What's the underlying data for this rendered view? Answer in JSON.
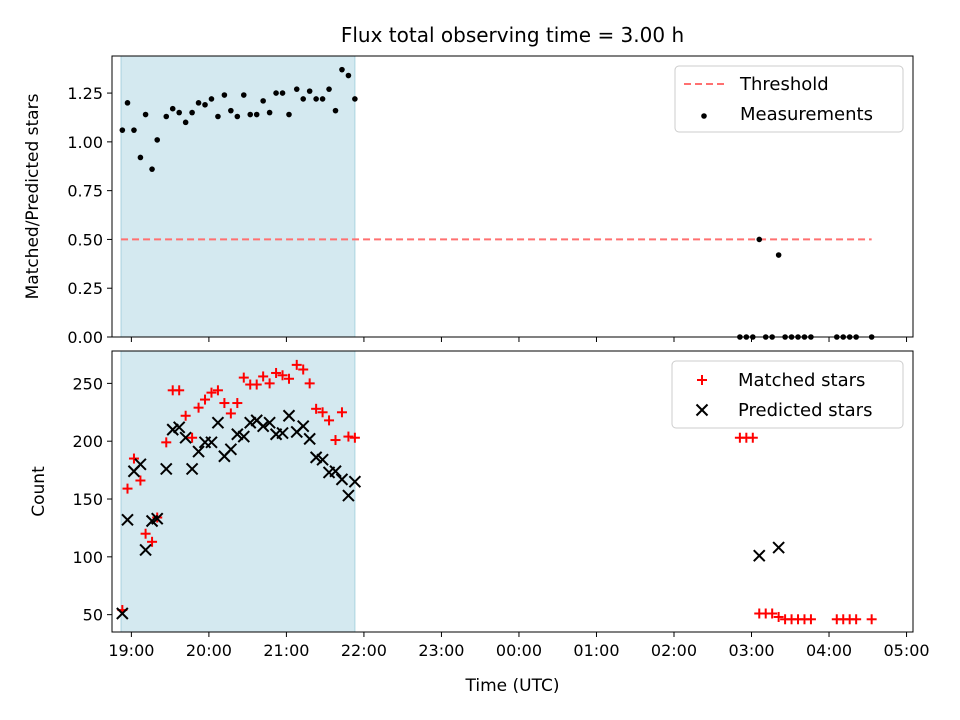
{
  "chart_data": [
    {
      "type": "scatter",
      "title": "Flux total observing time = 3.00 h",
      "xlabel": "",
      "ylabel": "Matched/Predicted stars",
      "xlim": [
        "18:45",
        "05:05"
      ],
      "ylim": [
        0,
        1.44
      ],
      "yticks": [
        "0.00",
        "0.25",
        "0.50",
        "0.75",
        "1.00",
        "1.25"
      ],
      "shaded_region": {
        "x_start": "18:52",
        "x_end": "21:53",
        "color": "#d4e9f0"
      },
      "legend_position": "top-right",
      "threshold": {
        "name": "Threshold",
        "y": 0.5,
        "x_start": "18:52",
        "x_end": "04:33",
        "color": "#ff7070"
      },
      "series": [
        {
          "name": "Measurements",
          "marker": "dot",
          "color": "#000000",
          "points": [
            {
              "x": "18:53",
              "y": 1.06
            },
            {
              "x": "18:57",
              "y": 1.2
            },
            {
              "x": "19:02",
              "y": 1.06
            },
            {
              "x": "19:07",
              "y": 0.92
            },
            {
              "x": "19:11",
              "y": 1.14
            },
            {
              "x": "19:16",
              "y": 0.86
            },
            {
              "x": "19:20",
              "y": 1.01
            },
            {
              "x": "19:27",
              "y": 1.13
            },
            {
              "x": "19:32",
              "y": 1.17
            },
            {
              "x": "19:37",
              "y": 1.15
            },
            {
              "x": "19:42",
              "y": 1.1
            },
            {
              "x": "19:47",
              "y": 1.15
            },
            {
              "x": "19:52",
              "y": 1.2
            },
            {
              "x": "19:57",
              "y": 1.19
            },
            {
              "x": "20:02",
              "y": 1.22
            },
            {
              "x": "20:07",
              "y": 1.13
            },
            {
              "x": "20:12",
              "y": 1.24
            },
            {
              "x": "20:17",
              "y": 1.16
            },
            {
              "x": "20:22",
              "y": 1.13
            },
            {
              "x": "20:27",
              "y": 1.24
            },
            {
              "x": "20:32",
              "y": 1.14
            },
            {
              "x": "20:37",
              "y": 1.14
            },
            {
              "x": "20:42",
              "y": 1.21
            },
            {
              "x": "20:47",
              "y": 1.15
            },
            {
              "x": "20:52",
              "y": 1.25
            },
            {
              "x": "20:57",
              "y": 1.25
            },
            {
              "x": "21:02",
              "y": 1.14
            },
            {
              "x": "21:08",
              "y": 1.27
            },
            {
              "x": "21:13",
              "y": 1.22
            },
            {
              "x": "21:18",
              "y": 1.26
            },
            {
              "x": "21:23",
              "y": 1.22
            },
            {
              "x": "21:28",
              "y": 1.22
            },
            {
              "x": "21:33",
              "y": 1.27
            },
            {
              "x": "21:38",
              "y": 1.16
            },
            {
              "x": "21:43",
              "y": 1.37
            },
            {
              "x": "21:48",
              "y": 1.34
            },
            {
              "x": "21:53",
              "y": 1.22
            },
            {
              "x": "02:51",
              "y": 0
            },
            {
              "x": "02:56",
              "y": 0
            },
            {
              "x": "03:01",
              "y": 0
            },
            {
              "x": "03:06",
              "y": 0.5
            },
            {
              "x": "03:11",
              "y": 0
            },
            {
              "x": "03:16",
              "y": 0
            },
            {
              "x": "03:21",
              "y": 0.42
            },
            {
              "x": "03:26",
              "y": 0
            },
            {
              "x": "03:31",
              "y": 0
            },
            {
              "x": "03:36",
              "y": 0
            },
            {
              "x": "03:41",
              "y": 0
            },
            {
              "x": "03:46",
              "y": 0
            },
            {
              "x": "04:06",
              "y": 0
            },
            {
              "x": "04:11",
              "y": 0
            },
            {
              "x": "04:16",
              "y": 0
            },
            {
              "x": "04:21",
              "y": 0
            },
            {
              "x": "04:33",
              "y": 0
            }
          ]
        }
      ]
    },
    {
      "type": "scatter",
      "title": "",
      "xlabel": "Time (UTC)",
      "ylabel": "Count",
      "xlim": [
        "18:45",
        "05:05"
      ],
      "ylim": [
        35,
        278
      ],
      "yticks": [
        "50",
        "100",
        "150",
        "200",
        "250"
      ],
      "xticks": [
        "19:00",
        "20:00",
        "21:00",
        "22:00",
        "23:00",
        "00:00",
        "01:00",
        "02:00",
        "03:00",
        "04:00",
        "05:00"
      ],
      "shaded_region": {
        "x_start": "18:52",
        "x_end": "21:53",
        "color": "#d4e9f0"
      },
      "legend_position": "top-right",
      "series": [
        {
          "name": "Matched stars",
          "marker": "plus",
          "color": "#ff0000",
          "points": [
            {
              "x": "18:53",
              "y": 54
            },
            {
              "x": "18:57",
              "y": 159
            },
            {
              "x": "19:02",
              "y": 185
            },
            {
              "x": "19:07",
              "y": 166
            },
            {
              "x": "19:11",
              "y": 120
            },
            {
              "x": "19:16",
              "y": 113
            },
            {
              "x": "19:20",
              "y": 134
            },
            {
              "x": "19:27",
              "y": 199
            },
            {
              "x": "19:32",
              "y": 244
            },
            {
              "x": "19:37",
              "y": 244
            },
            {
              "x": "19:42",
              "y": 222
            },
            {
              "x": "19:47",
              "y": 203
            },
            {
              "x": "19:52",
              "y": 229
            },
            {
              "x": "19:57",
              "y": 236
            },
            {
              "x": "20:02",
              "y": 242
            },
            {
              "x": "20:07",
              "y": 244
            },
            {
              "x": "20:12",
              "y": 233
            },
            {
              "x": "20:17",
              "y": 224
            },
            {
              "x": "20:22",
              "y": 233
            },
            {
              "x": "20:27",
              "y": 255
            },
            {
              "x": "20:32",
              "y": 249
            },
            {
              "x": "20:37",
              "y": 249
            },
            {
              "x": "20:42",
              "y": 256
            },
            {
              "x": "20:47",
              "y": 250
            },
            {
              "x": "20:52",
              "y": 259
            },
            {
              "x": "20:57",
              "y": 257
            },
            {
              "x": "21:02",
              "y": 254
            },
            {
              "x": "21:08",
              "y": 266
            },
            {
              "x": "21:13",
              "y": 262
            },
            {
              "x": "21:18",
              "y": 250
            },
            {
              "x": "21:23",
              "y": 228
            },
            {
              "x": "21:28",
              "y": 225
            },
            {
              "x": "21:33",
              "y": 218
            },
            {
              "x": "21:38",
              "y": 201
            },
            {
              "x": "21:43",
              "y": 225
            },
            {
              "x": "21:48",
              "y": 204
            },
            {
              "x": "21:53",
              "y": 203
            },
            {
              "x": "02:51",
              "y": 203
            },
            {
              "x": "02:56",
              "y": 203
            },
            {
              "x": "03:01",
              "y": 203
            },
            {
              "x": "03:06",
              "y": 51
            },
            {
              "x": "03:11",
              "y": 51
            },
            {
              "x": "03:16",
              "y": 51
            },
            {
              "x": "03:21",
              "y": 48
            },
            {
              "x": "03:26",
              "y": 46
            },
            {
              "x": "03:31",
              "y": 46
            },
            {
              "x": "03:36",
              "y": 46
            },
            {
              "x": "03:41",
              "y": 46
            },
            {
              "x": "03:46",
              "y": 46
            },
            {
              "x": "04:06",
              "y": 46
            },
            {
              "x": "04:11",
              "y": 46
            },
            {
              "x": "04:16",
              "y": 46
            },
            {
              "x": "04:21",
              "y": 46
            },
            {
              "x": "04:33",
              "y": 46
            }
          ]
        },
        {
          "name": "Predicted stars",
          "marker": "x",
          "color": "#000000",
          "points": [
            {
              "x": "18:53",
              "y": 51
            },
            {
              "x": "18:57",
              "y": 132
            },
            {
              "x": "19:02",
              "y": 174
            },
            {
              "x": "19:07",
              "y": 180
            },
            {
              "x": "19:11",
              "y": 106
            },
            {
              "x": "19:16",
              "y": 131
            },
            {
              "x": "19:20",
              "y": 133
            },
            {
              "x": "19:27",
              "y": 176
            },
            {
              "x": "19:32",
              "y": 210
            },
            {
              "x": "19:37",
              "y": 212
            },
            {
              "x": "19:42",
              "y": 203
            },
            {
              "x": "19:47",
              "y": 176
            },
            {
              "x": "19:52",
              "y": 191
            },
            {
              "x": "19:57",
              "y": 199
            },
            {
              "x": "20:02",
              "y": 199
            },
            {
              "x": "20:07",
              "y": 216
            },
            {
              "x": "20:12",
              "y": 187
            },
            {
              "x": "20:17",
              "y": 193
            },
            {
              "x": "20:22",
              "y": 206
            },
            {
              "x": "20:27",
              "y": 204
            },
            {
              "x": "20:32",
              "y": 216
            },
            {
              "x": "20:37",
              "y": 218
            },
            {
              "x": "20:42",
              "y": 213
            },
            {
              "x": "20:47",
              "y": 216
            },
            {
              "x": "20:52",
              "y": 206
            },
            {
              "x": "20:57",
              "y": 207
            },
            {
              "x": "21:02",
              "y": 222
            },
            {
              "x": "21:08",
              "y": 208
            },
            {
              "x": "21:13",
              "y": 213
            },
            {
              "x": "21:18",
              "y": 202
            },
            {
              "x": "21:23",
              "y": 186
            },
            {
              "x": "21:28",
              "y": 184
            },
            {
              "x": "21:33",
              "y": 173
            },
            {
              "x": "21:38",
              "y": 174
            },
            {
              "x": "21:43",
              "y": 167
            },
            {
              "x": "21:48",
              "y": 153
            },
            {
              "x": "21:53",
              "y": 165
            },
            {
              "x": "03:06",
              "y": 101
            },
            {
              "x": "03:21",
              "y": 108
            }
          ]
        }
      ]
    }
  ]
}
